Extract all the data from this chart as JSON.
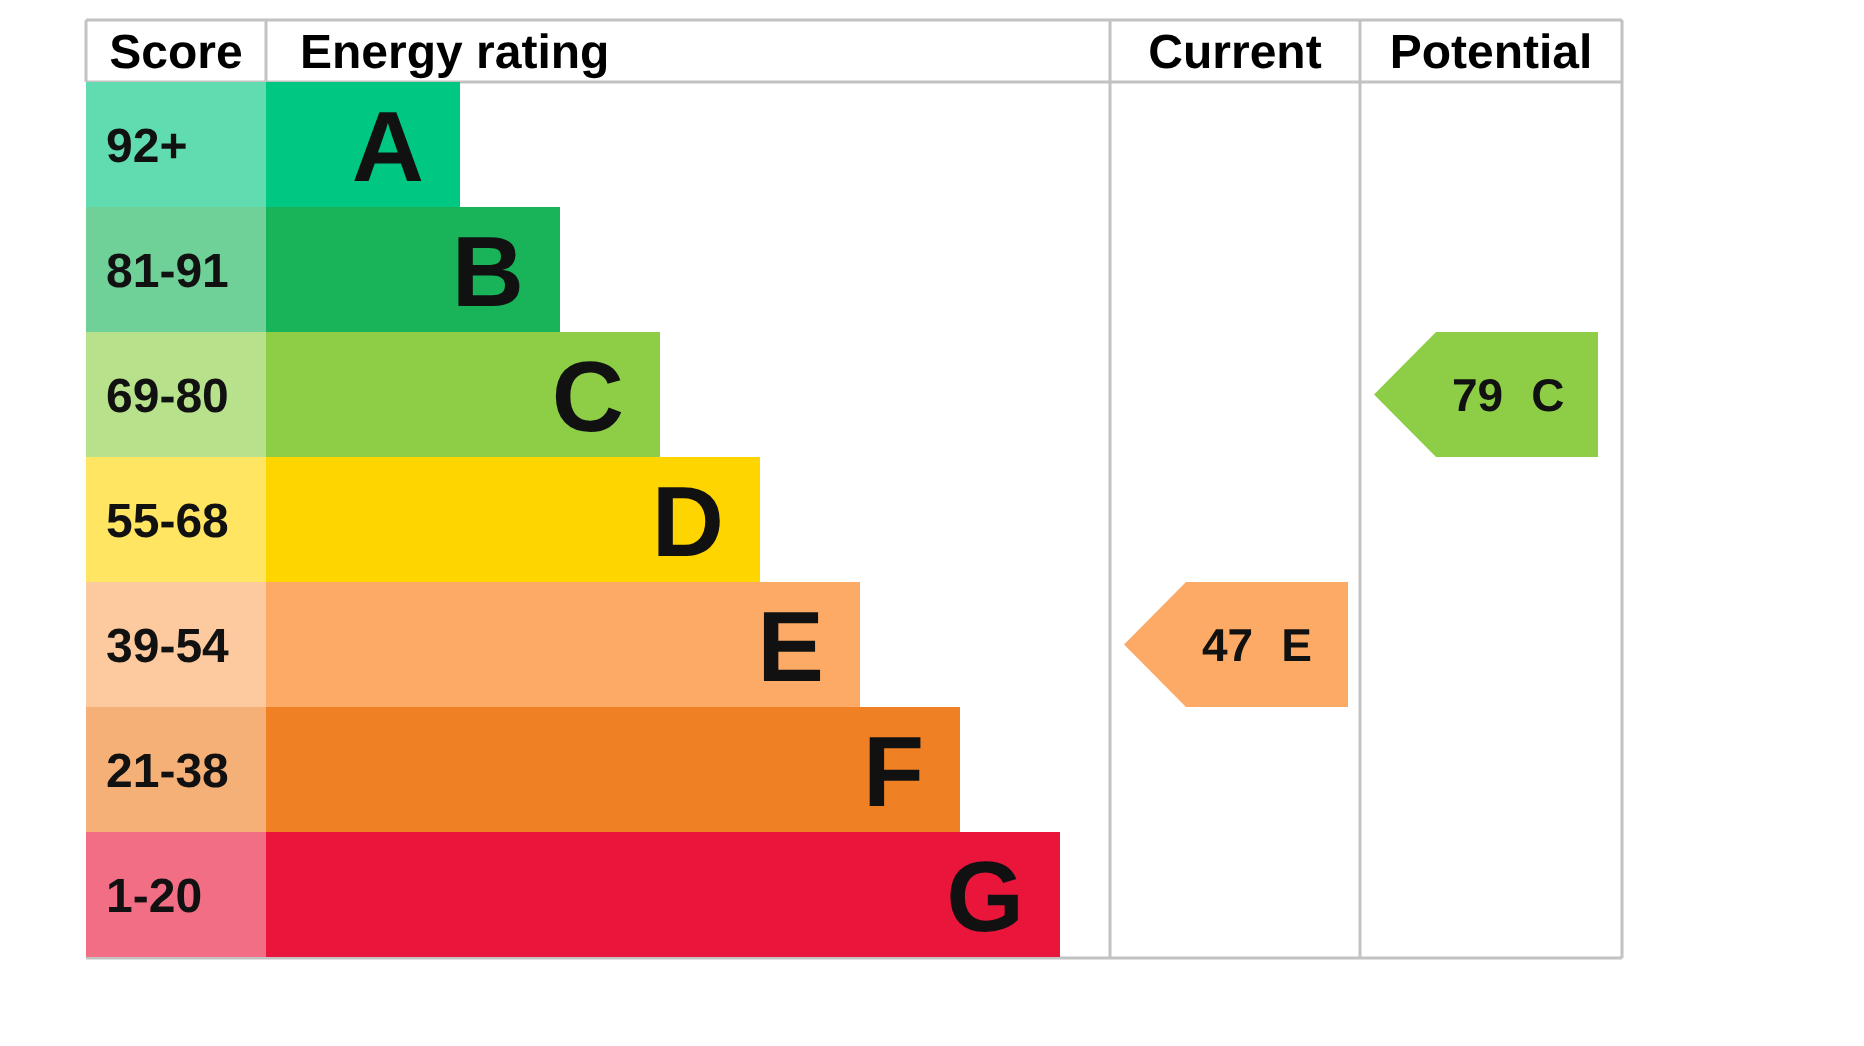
{
  "chart_data": {
    "type": "other",
    "ylabel": "Energy rating",
    "categories": [
      "A",
      "B",
      "C",
      "D",
      "E",
      "F",
      "G"
    ],
    "colors": [
      "#00c781",
      "#19b459",
      "#8dce46",
      "#ffd500",
      "#fcaa65",
      "#ef8023",
      "#e9153b"
    ],
    "annotations": [
      "Score",
      "92+",
      "81-91",
      "69-80",
      "55-68",
      "39-54",
      "21-38",
      "1-20",
      "Current",
      "Potential"
    ],
    "data_labels": true,
    "series": [
      {
        "values": [
          null,
          null,
          null,
          null,
          47,
          null,
          null
        ],
        "color": "#fcaa65"
      },
      {
        "values": [
          null,
          null,
          79,
          null,
          null,
          null,
          null
        ],
        "color": "#8dce46"
      }
    ]
  }
}
